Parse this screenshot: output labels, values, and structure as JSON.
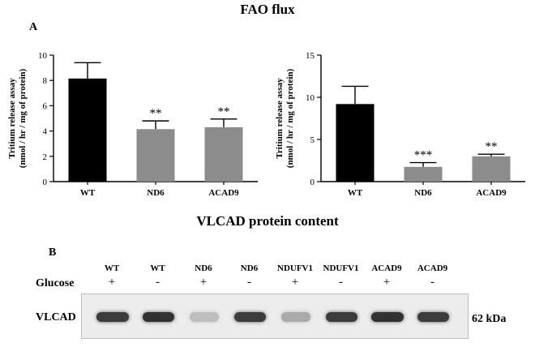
{
  "figure": {
    "title": "FAO flux",
    "panel_a_label": "A",
    "section_b_title": "VLCAD protein content",
    "panel_b_label": "B"
  },
  "chart_data": [
    {
      "type": "bar",
      "title": "",
      "ylabel": "Tritium release assay\n(nmol / hr / mg of protein)",
      "xlabel": "",
      "categories": [
        "WT",
        "ND6",
        "ACAD9"
      ],
      "values": [
        8.15,
        4.15,
        4.3
      ],
      "errors": [
        1.25,
        0.65,
        0.65
      ],
      "colors": [
        "#000000",
        "#8c8c8c",
        "#8c8c8c"
      ],
      "significance": [
        "",
        "**",
        "**"
      ],
      "ylim": [
        0,
        10
      ],
      "yticks": [
        "0",
        "2",
        "4",
        "6",
        "8",
        "10"
      ],
      "grid": false
    },
    {
      "type": "bar",
      "title": "",
      "ylabel": "Tritium release assay\n(nmol / hr / mg of protein)",
      "xlabel": "",
      "categories": [
        "WT",
        "ND6",
        "ACAD9"
      ],
      "values": [
        9.2,
        1.75,
        3.0
      ],
      "errors": [
        2.1,
        0.5,
        0.25
      ],
      "colors": [
        "#000000",
        "#8c8c8c",
        "#8c8c8c"
      ],
      "significance": [
        "",
        "***",
        "**"
      ],
      "ylim": [
        0,
        15
      ],
      "yticks": [
        "0",
        "5",
        "10",
        "15"
      ],
      "grid": false
    }
  ],
  "blot": {
    "row_label_glucose": "Glucose",
    "row_label_protein": "VLCAD",
    "size_label": "62 kDa",
    "lanes": [
      {
        "name": "WT",
        "glucose": "+",
        "band": 0.85
      },
      {
        "name": "WT",
        "glucose": "-",
        "band": 0.9
      },
      {
        "name": "ND6",
        "glucose": "+",
        "band": 0.2
      },
      {
        "name": "ND6",
        "glucose": "-",
        "band": 0.85
      },
      {
        "name": "NDUFV1",
        "glucose": "+",
        "band": 0.3
      },
      {
        "name": "NDUFV1",
        "glucose": "-",
        "band": 0.85
      },
      {
        "name": "ACAD9",
        "glucose": "+",
        "band": 0.9
      },
      {
        "name": "ACAD9",
        "glucose": "-",
        "band": 0.85
      }
    ]
  }
}
